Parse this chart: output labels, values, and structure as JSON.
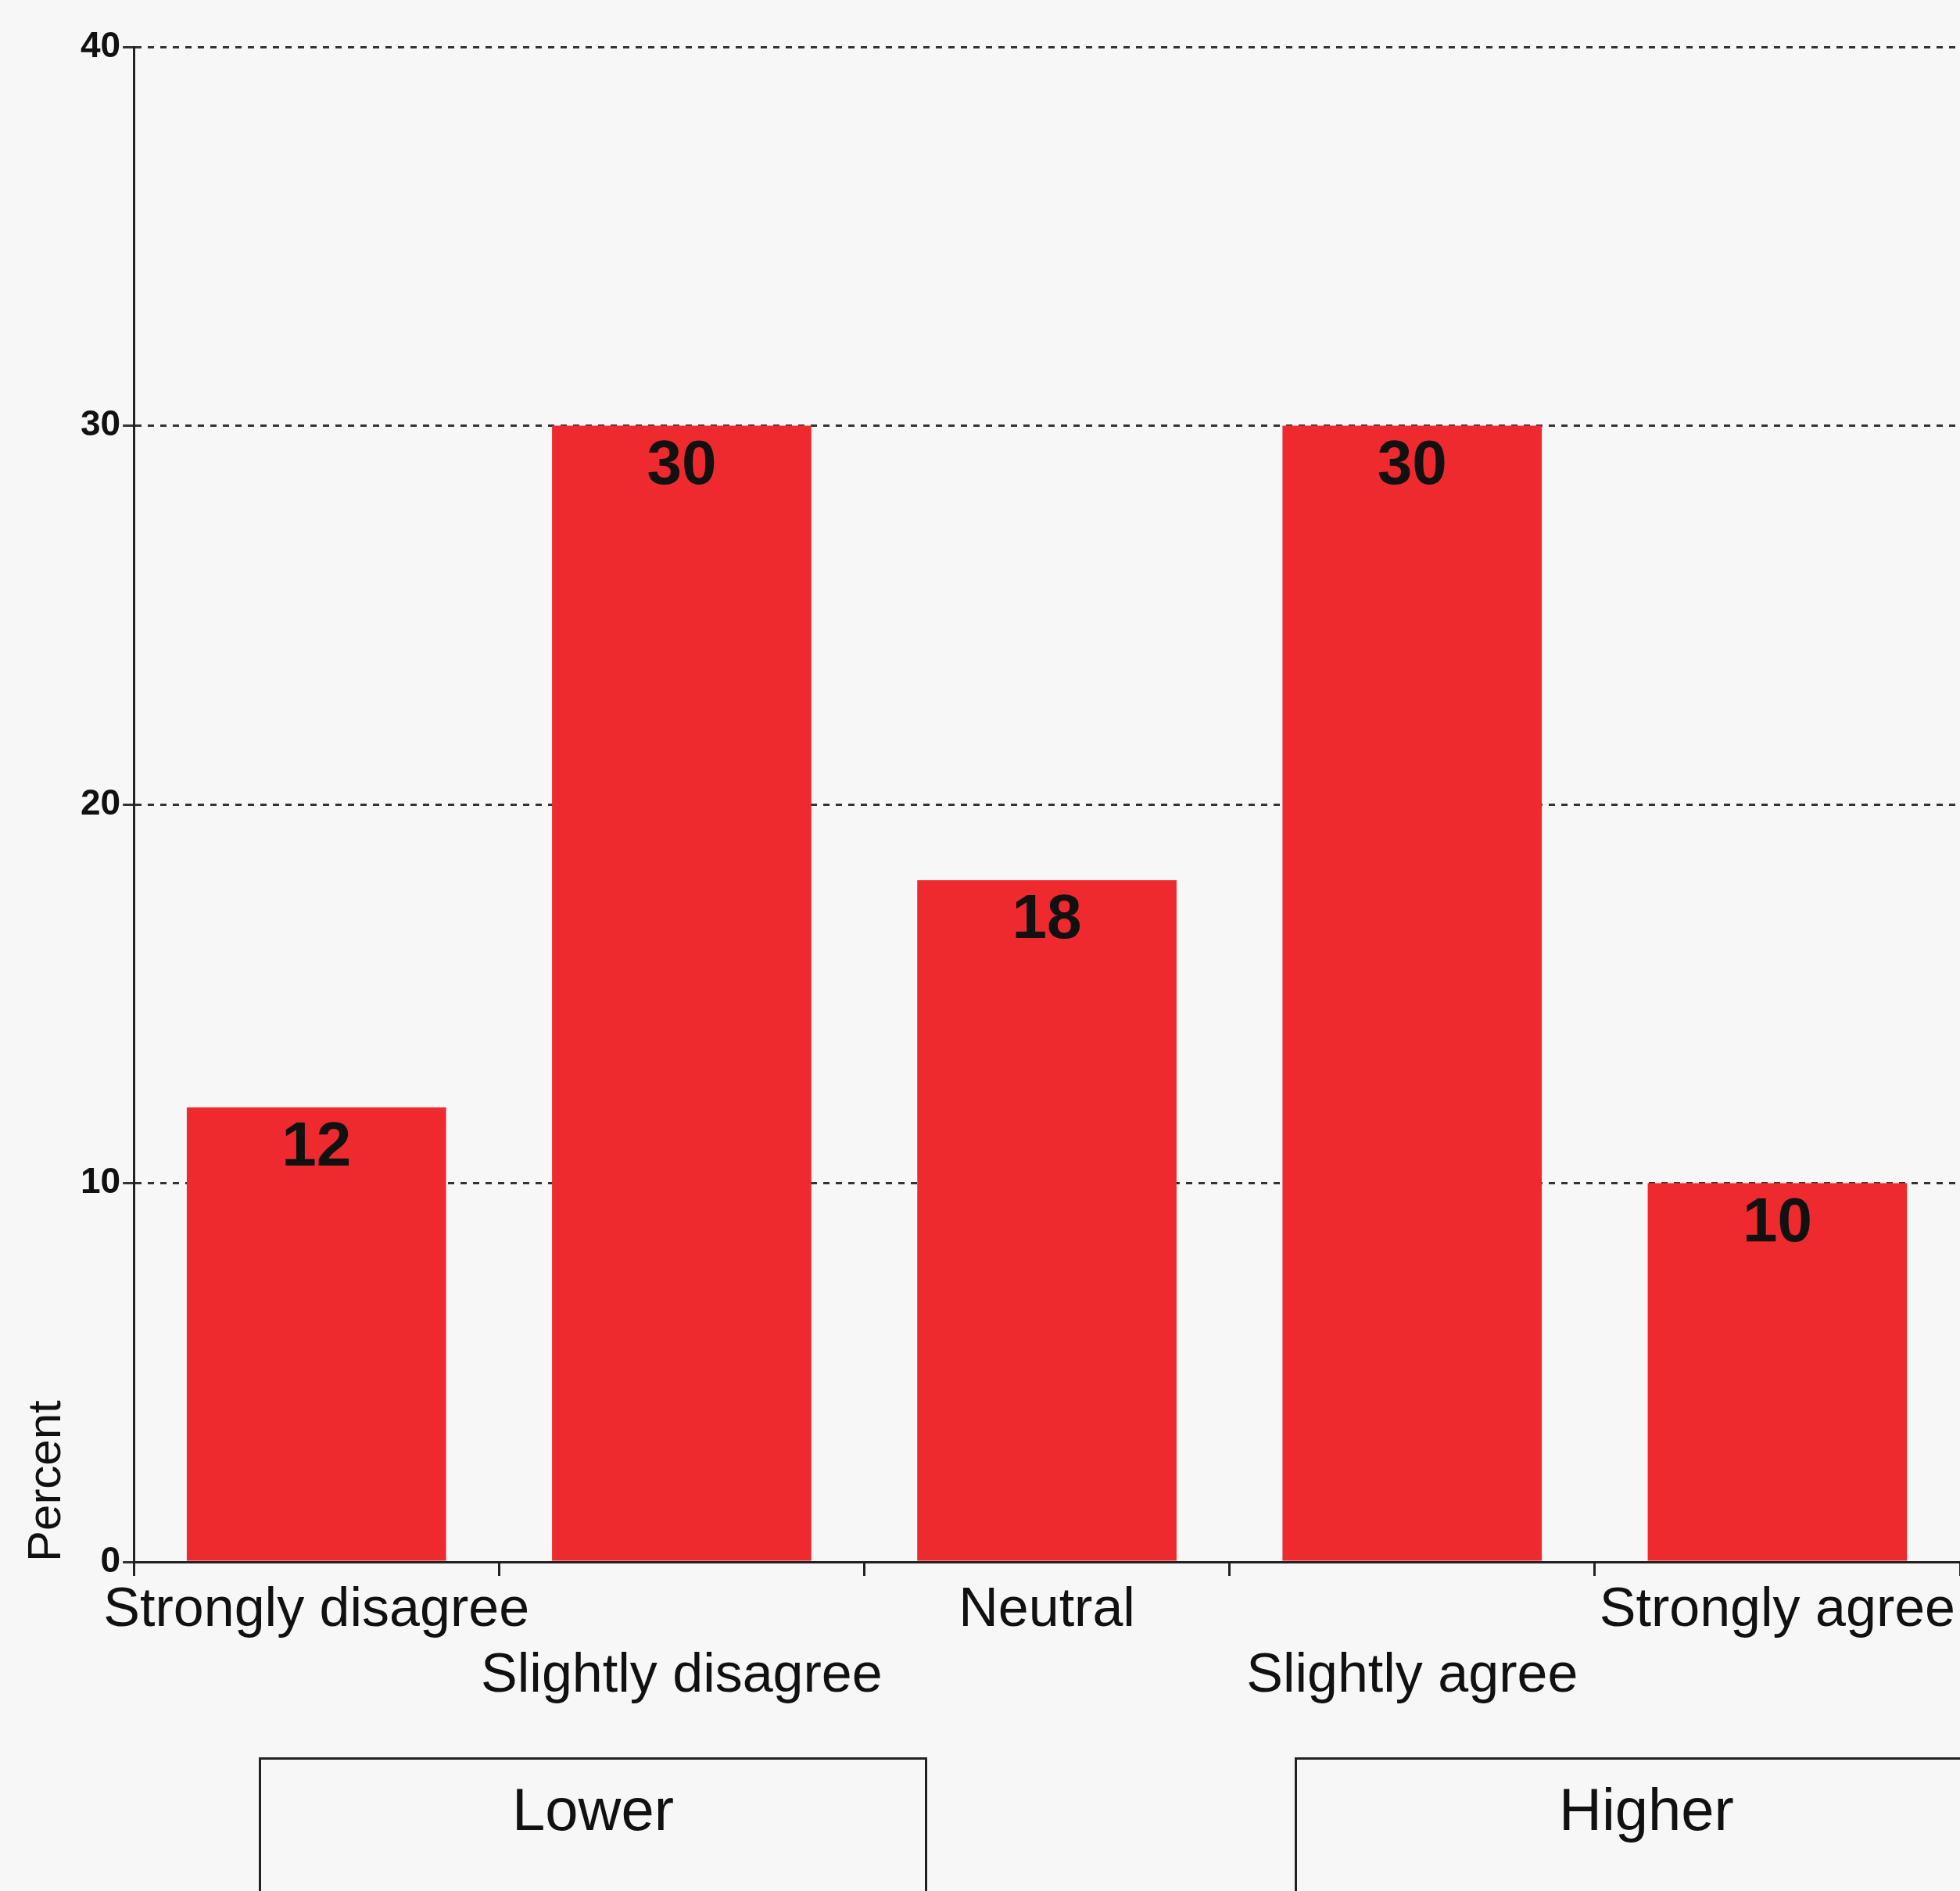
{
  "chart_data": {
    "type": "bar",
    "ylabel": "Percent",
    "categories": [
      "Strongly disagree",
      "Slightly disagree",
      "Neutral",
      "Slightly agree",
      "Strongly agree"
    ],
    "values": [
      12,
      30,
      18,
      30,
      10
    ],
    "color": "#ee2a2e",
    "data_labels": true,
    "ylim": [
      0,
      40
    ],
    "yticks": [
      0,
      10,
      20,
      30,
      40
    ],
    "grid": "y",
    "annotations": [
      "Lower",
      "Higher"
    ]
  }
}
